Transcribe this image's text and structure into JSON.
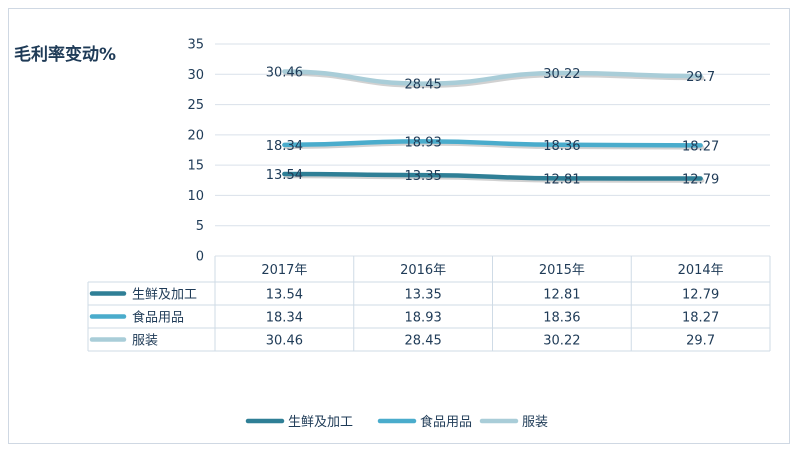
{
  "chart_data": {
    "type": "line",
    "title": "毛利率变动%",
    "categories": [
      "2017年",
      "2016年",
      "2015年",
      "2014年"
    ],
    "series": [
      {
        "name": "生鲜及加工",
        "values": [
          13.54,
          13.35,
          12.81,
          12.79
        ],
        "color": "#2f7f96"
      },
      {
        "name": "食品用品",
        "values": [
          18.34,
          18.93,
          18.36,
          18.27
        ],
        "color": "#4aaccc"
      },
      {
        "name": "服装",
        "values": [
          30.46,
          28.45,
          30.22,
          29.7
        ],
        "color": "#a9cdd8"
      }
    ],
    "y_ticks": [
      "0",
      "5",
      "10",
      "15",
      "20",
      "25",
      "30",
      "35"
    ],
    "ylim": [
      0,
      35
    ],
    "grid": true,
    "legend": "bottom",
    "data_table": true
  }
}
